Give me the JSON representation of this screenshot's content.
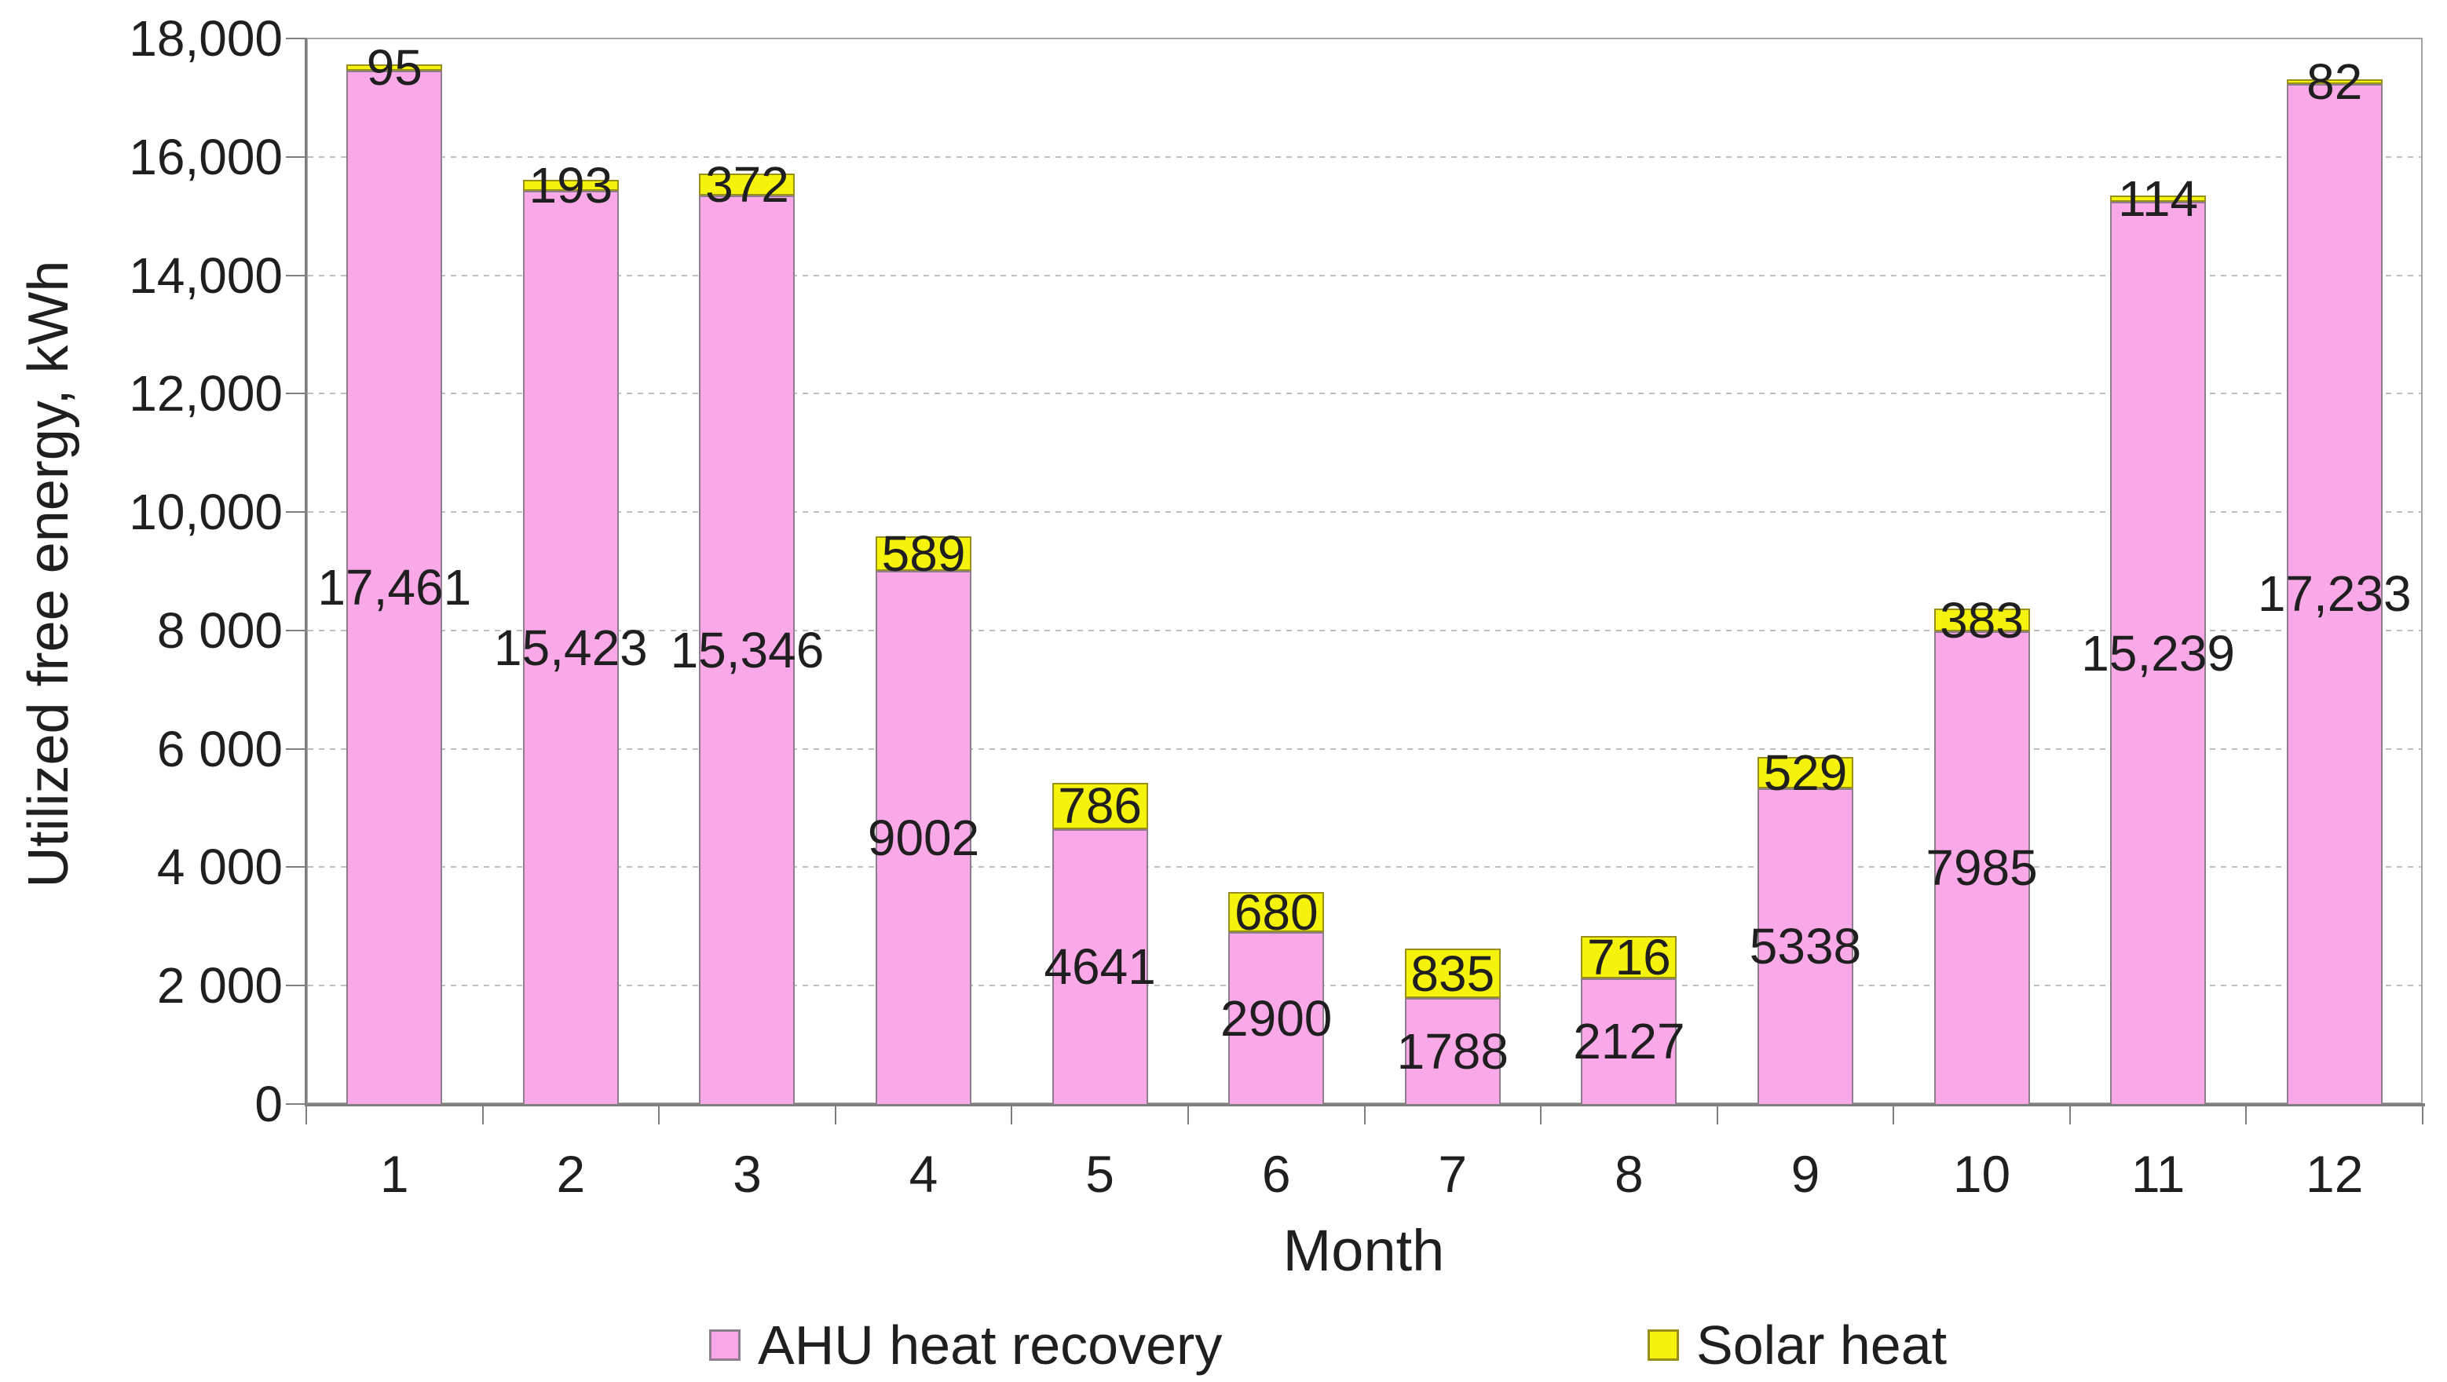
{
  "chart_data": {
    "type": "bar",
    "stacked": true,
    "title": "",
    "xlabel": "Month",
    "ylabel": "Utilized free energy, kWh",
    "categories": [
      "1",
      "2",
      "3",
      "4",
      "5",
      "6",
      "7",
      "8",
      "9",
      "10",
      "11",
      "12"
    ],
    "series": [
      {
        "name": "AHU heat recovery",
        "color": "#f9a8e8",
        "border_color": "#8e7d8e",
        "values": [
          17461,
          15423,
          15346,
          9002,
          4641,
          2900,
          1788,
          2127,
          5338,
          7985,
          15239,
          17233
        ],
        "labels": [
          "17,461",
          "15,423",
          "15,346",
          "9002",
          "4641",
          "2900",
          "1788",
          "2127",
          "5338",
          "7985",
          "15,239",
          "17,233"
        ]
      },
      {
        "name": "Solar heat",
        "color": "#f5f20b",
        "border_color": "#99901c",
        "values": [
          95,
          193,
          372,
          589,
          786,
          680,
          835,
          716,
          529,
          383,
          114,
          82
        ],
        "labels": [
          "95",
          "193",
          "372",
          "589",
          "786",
          "680",
          "835",
          "716",
          "529",
          "383",
          "114",
          "82"
        ]
      }
    ],
    "ylim": [
      0,
      18000
    ],
    "ytick_step": 2000,
    "ytick_labels": [
      "0",
      "2 000",
      "4 000",
      "6 000",
      "8 000",
      "10,000",
      "12,000",
      "14,000",
      "16,000",
      "18,000"
    ],
    "grid": "horizontal-dashed",
    "legend_position": "bottom"
  }
}
